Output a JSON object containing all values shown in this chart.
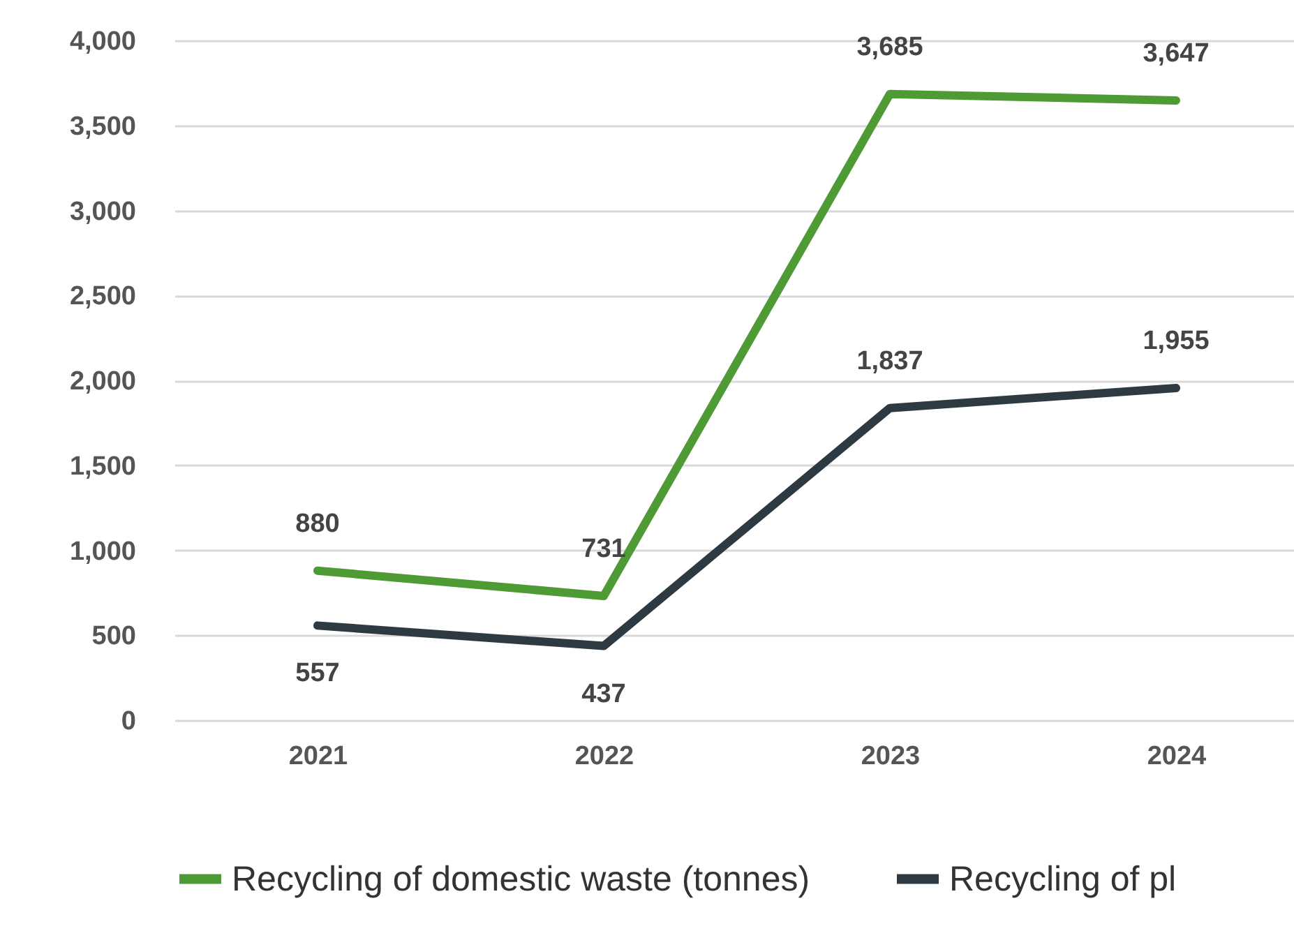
{
  "chart_data": {
    "type": "line",
    "categories": [
      "2021",
      "2022",
      "2023",
      "2024"
    ],
    "series": [
      {
        "name": "Recycling of domestic waste  (tonnes)",
        "color": "#4e9a34",
        "values": [
          880,
          731,
          3685,
          3647
        ],
        "value_labels": [
          "880",
          "731",
          "3,685",
          "3,647"
        ]
      },
      {
        "name": "Recycling of pl",
        "color": "#2e3a42",
        "values": [
          557,
          437,
          1837,
          1955
        ],
        "value_labels": [
          "557",
          "437",
          "1,837",
          "1,955"
        ]
      }
    ],
    "ylim": [
      0,
      4000
    ],
    "yticks": [
      0,
      500,
      {
        "value": 1000,
        "label": "1,000"
      },
      {
        "value": 1500,
        "label": "1,500"
      },
      {
        "value": 2000,
        "label": "2,000"
      },
      {
        "value": 2500,
        "label": "2,500"
      },
      {
        "value": 3000,
        "label": "3,000"
      },
      {
        "value": 3500,
        "label": "3,500"
      },
      {
        "value": 4000,
        "label": "4,000"
      }
    ],
    "grid": "y",
    "legend": "bottom",
    "marker": "none",
    "line_style": "solid"
  }
}
